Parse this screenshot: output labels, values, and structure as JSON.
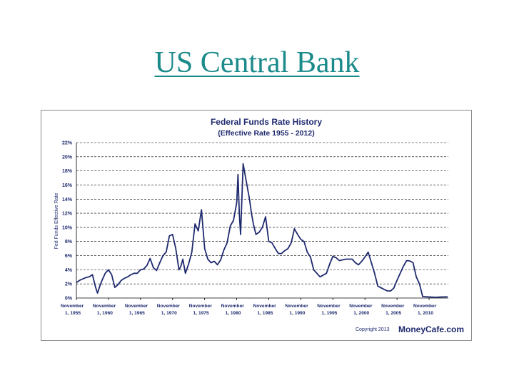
{
  "slide": {
    "title": "US Central Bank"
  },
  "chart_data": {
    "type": "line",
    "title": "Federal Funds Rate History",
    "subtitle": "(Effective Rate 1955 - 2012)",
    "ylabel": "Fed Funds Effective Rate",
    "ylim": [
      0,
      22
    ],
    "yticks": [
      0,
      2,
      4,
      6,
      8,
      10,
      12,
      14,
      16,
      18,
      20,
      22
    ],
    "ytick_labels": [
      "0%",
      "2%",
      "4%",
      "6%",
      "8%",
      "10%",
      "12%",
      "14%",
      "16%",
      "18%",
      "20%",
      "22%"
    ],
    "xlim": [
      1955,
      2013
    ],
    "xticks": [
      1955,
      1960,
      1965,
      1970,
      1975,
      1980,
      1985,
      1990,
      1995,
      2000,
      2005,
      2010
    ],
    "xtick_labels": [
      "November 1, 1955",
      "November 1, 1960",
      "November 1, 1965",
      "November 1, 1970",
      "November 1, 1975",
      "November 1, 1980",
      "November 1, 1985",
      "November 1, 1990",
      "November 1, 1995",
      "November 1, 2000",
      "November 1, 2005",
      "November 1, 2010"
    ],
    "grid": true,
    "line_color": "#1f2a6e",
    "series": [
      {
        "name": "",
        "x": [
          1955.0,
          1955.5,
          1956.0,
          1956.5,
          1957.0,
          1957.5,
          1958.0,
          1958.3,
          1958.7,
          1959.0,
          1959.5,
          1960.0,
          1960.5,
          1961.0,
          1961.5,
          1962.0,
          1962.5,
          1963.0,
          1963.5,
          1964.0,
          1964.5,
          1965.0,
          1965.5,
          1966.0,
          1966.5,
          1967.0,
          1967.5,
          1968.0,
          1968.5,
          1969.0,
          1969.5,
          1970.0,
          1970.5,
          1971.0,
          1971.3,
          1971.6,
          1972.0,
          1972.5,
          1973.0,
          1973.5,
          1974.0,
          1974.5,
          1975.0,
          1975.5,
          1976.0,
          1976.5,
          1977.0,
          1977.5,
          1978.0,
          1978.5,
          1979.0,
          1979.5,
          1980.0,
          1980.2,
          1980.4,
          1980.6,
          1980.8,
          1981.0,
          1981.3,
          1981.6,
          1982.0,
          1982.3,
          1982.6,
          1983.0,
          1983.5,
          1984.0,
          1984.5,
          1985.0,
          1985.5,
          1986.0,
          1986.5,
          1987.0,
          1987.5,
          1988.0,
          1988.5,
          1989.0,
          1989.5,
          1990.0,
          1990.5,
          1991.0,
          1991.5,
          1992.0,
          1993.0,
          1994.0,
          1994.5,
          1995.0,
          1995.5,
          1996.0,
          1997.0,
          1998.0,
          1998.5,
          1999.0,
          1999.5,
          2000.0,
          2000.5,
          2001.0,
          2001.5,
          2002.0,
          2003.0,
          2003.5,
          2004.0,
          2004.5,
          2005.0,
          2005.5,
          2006.0,
          2006.5,
          2007.0,
          2007.5,
          2008.0,
          2008.5,
          2009.0,
          2010.0,
          2011.0,
          2012.0,
          2012.9
        ],
        "y": [
          2.2,
          2.5,
          2.7,
          2.9,
          3.0,
          3.3,
          1.5,
          0.7,
          1.8,
          2.5,
          3.5,
          4.0,
          3.3,
          1.5,
          1.9,
          2.5,
          2.8,
          3.0,
          3.3,
          3.5,
          3.5,
          4.0,
          4.1,
          4.6,
          5.6,
          4.3,
          3.9,
          5.0,
          6.0,
          6.5,
          8.8,
          9.0,
          7.0,
          4.0,
          4.5,
          5.5,
          3.5,
          4.8,
          6.5,
          10.5,
          9.5,
          12.5,
          7.0,
          5.5,
          5.0,
          5.2,
          4.7,
          5.4,
          6.8,
          7.8,
          10.2,
          11.0,
          13.5,
          17.5,
          12.0,
          9.0,
          14.0,
          19.0,
          17.5,
          16.0,
          14.0,
          12.0,
          10.5,
          9.0,
          9.3,
          10.0,
          11.5,
          8.0,
          7.8,
          7.0,
          6.3,
          6.3,
          6.7,
          7.0,
          7.8,
          9.8,
          9.0,
          8.3,
          8.0,
          6.5,
          5.8,
          4.0,
          3.0,
          3.5,
          4.8,
          5.9,
          5.7,
          5.3,
          5.5,
          5.5,
          5.0,
          4.7,
          5.2,
          5.8,
          6.5,
          5.0,
          3.5,
          1.7,
          1.2,
          1.0,
          1.0,
          1.4,
          2.5,
          3.5,
          4.5,
          5.3,
          5.25,
          5.0,
          3.0,
          2.0,
          0.2,
          0.15,
          0.1,
          0.15,
          0.16
        ]
      }
    ]
  },
  "branding": {
    "copyright": "Copyright 2013",
    "brand": "MoneyCafe.com"
  }
}
